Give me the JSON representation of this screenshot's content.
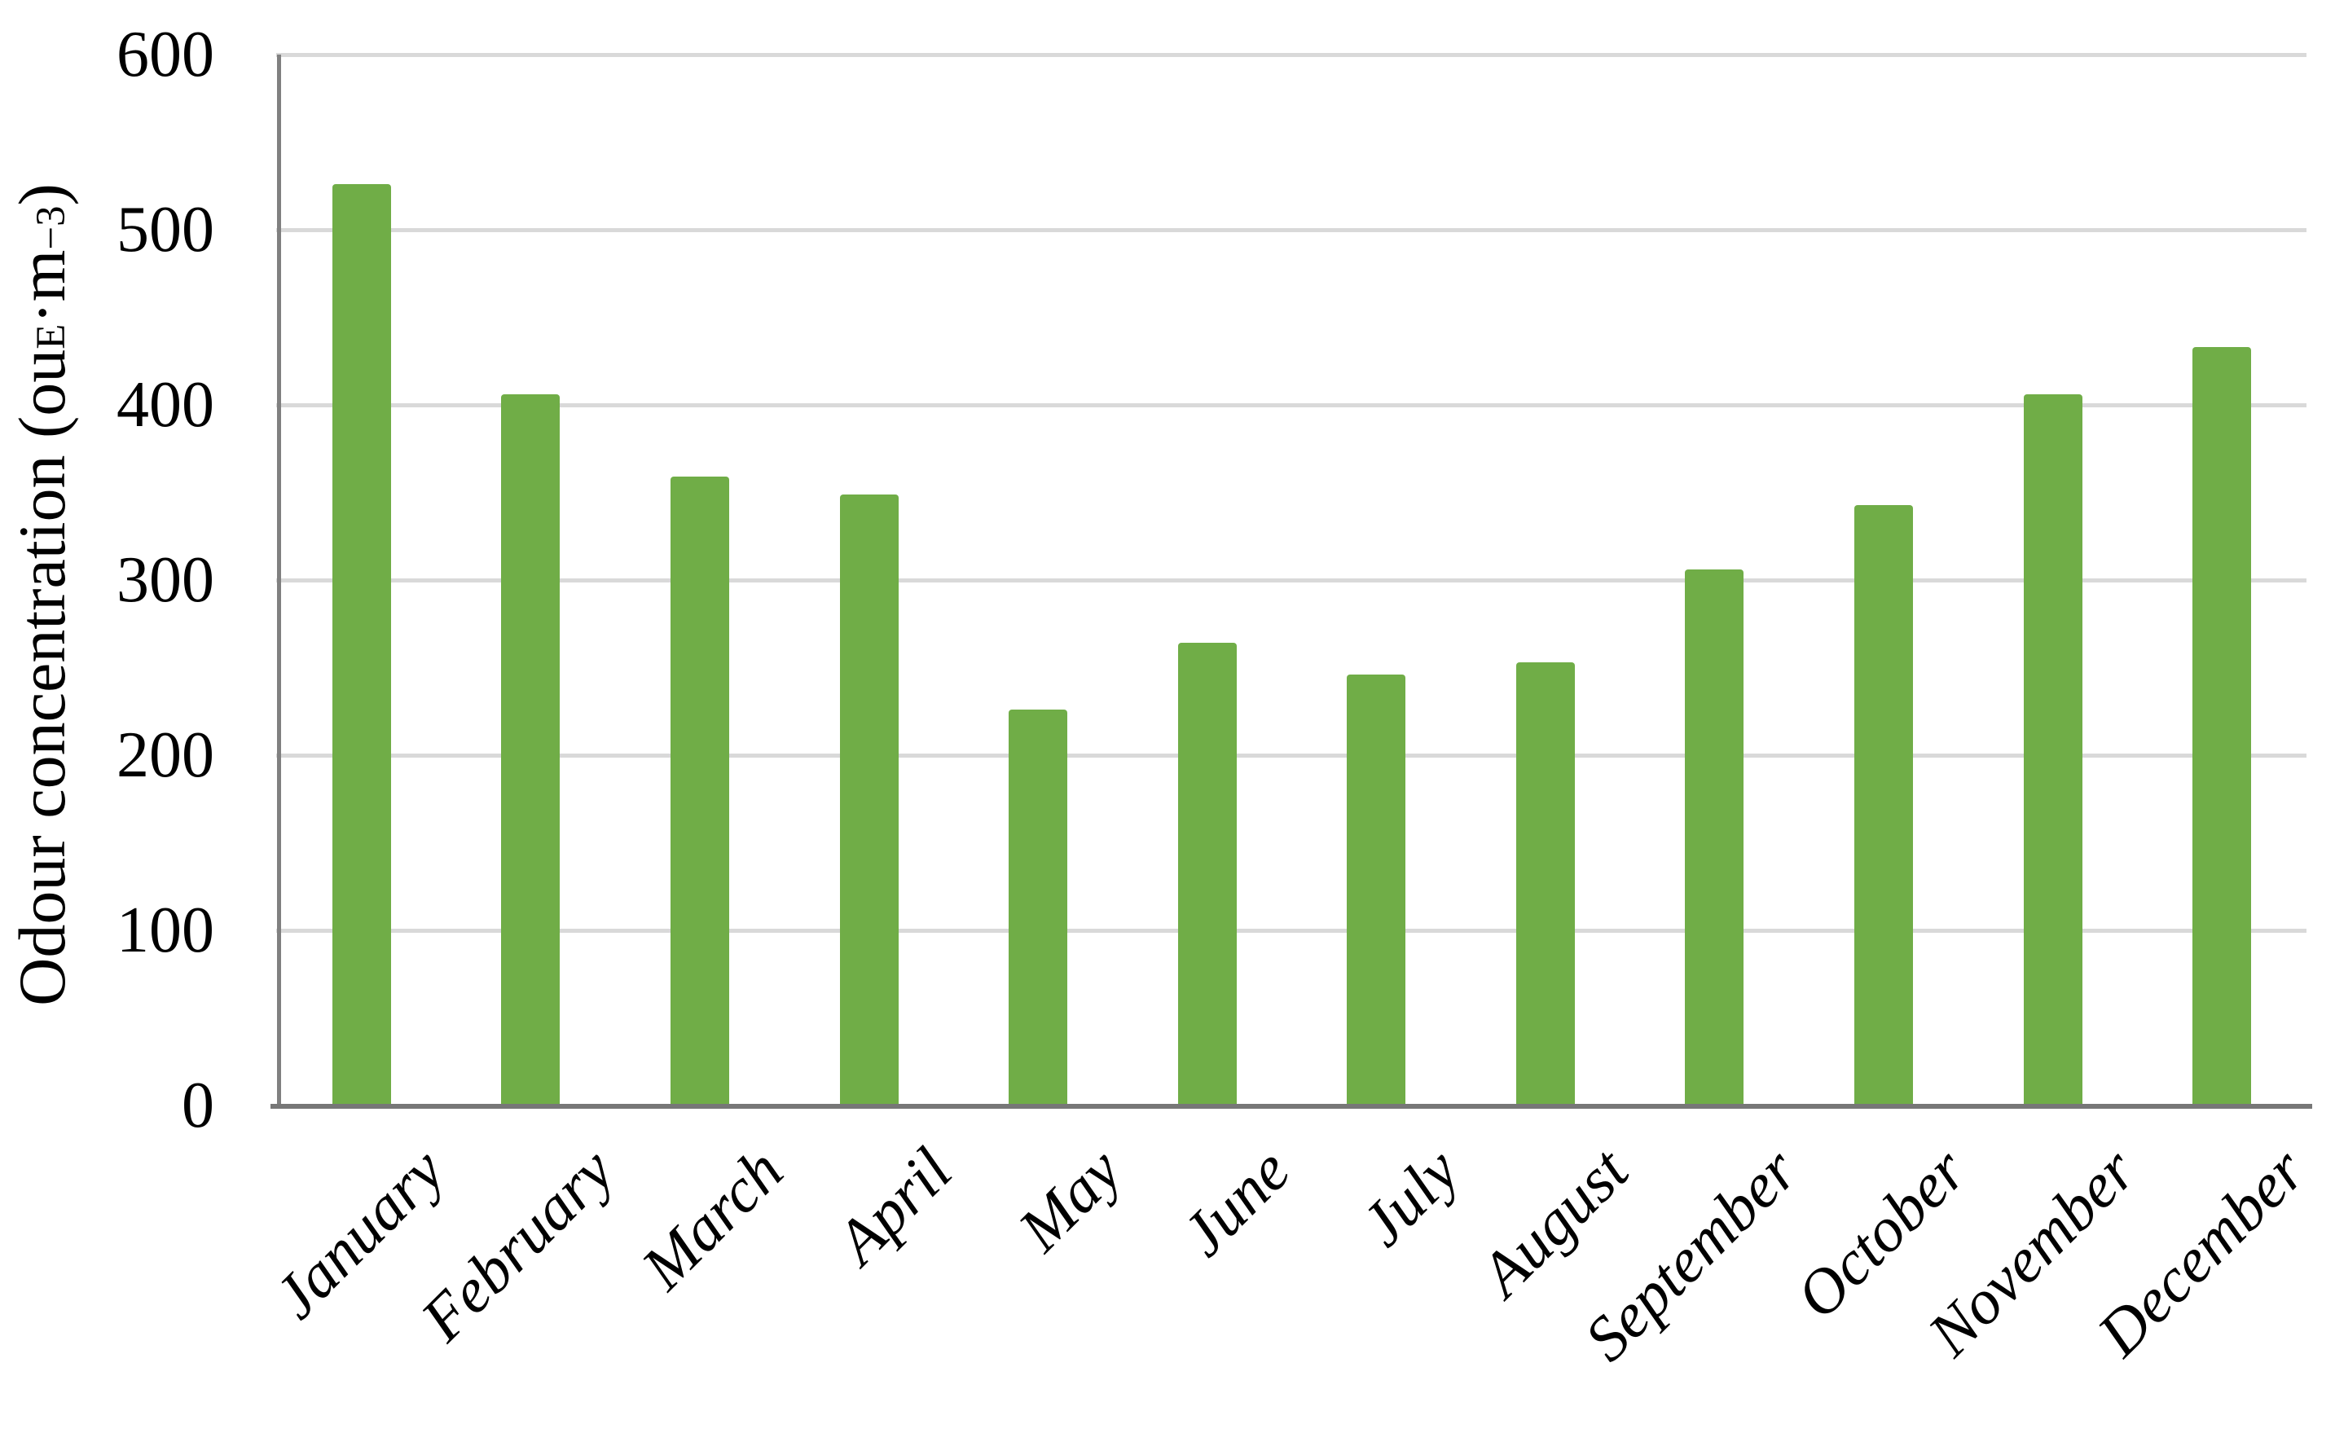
{
  "chart_data": {
    "type": "bar",
    "title": "",
    "categories": [
      "January",
      "February",
      "March",
      "April",
      "May",
      "June",
      "July",
      "August",
      "September",
      "October",
      "November",
      "December"
    ],
    "values": [
      526,
      406,
      359,
      349,
      226,
      264,
      246,
      253,
      306,
      343,
      406,
      433
    ],
    "series": [
      {
        "name": "Odour concentration",
        "values": [
          526,
          406,
          359,
          349,
          226,
          264,
          246,
          253,
          306,
          343,
          406,
          433
        ]
      }
    ],
    "xlabel": "",
    "ylabel": "Odour concentration (ouE·m−3)",
    "ylabel_parts": {
      "prefix": "Odour concentration (ou",
      "sub": "E",
      "mid": "·m",
      "sup": "−3",
      "suffix": ")"
    },
    "ylim": [
      0,
      600
    ],
    "yticks": [
      0,
      100,
      200,
      300,
      400,
      500,
      600
    ],
    "grid": true,
    "legend": false,
    "bar_color": "#70AD47",
    "gridline_color": "#D9D9D9",
    "axis_color": "#808080",
    "baseline_color": "#777777",
    "text_color": "#000000",
    "background": "#FFFFFF"
  }
}
